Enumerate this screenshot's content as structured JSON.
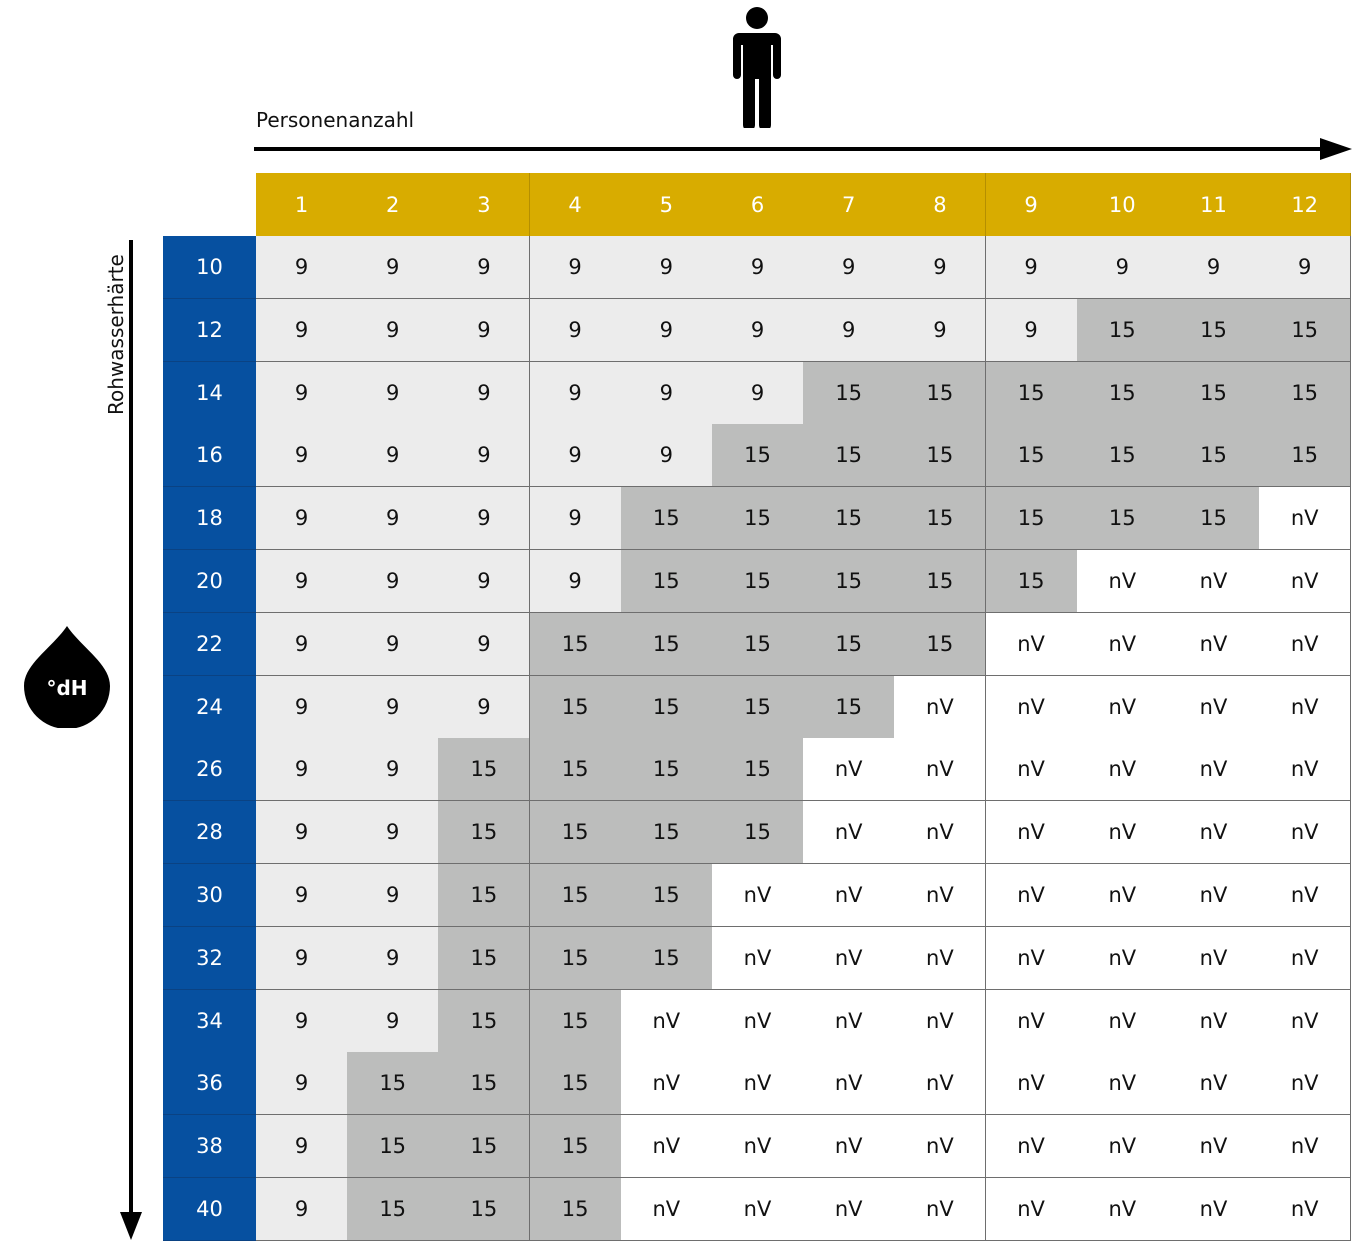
{
  "chart_data": {
    "type": "table",
    "x_axis_label": "Personenanzahl",
    "y_axis_label": "Rohwasserhärte",
    "unit_badge": "°dH",
    "columns": [
      "1",
      "2",
      "3",
      "4",
      "5",
      "6",
      "7",
      "8",
      "9",
      "10",
      "11",
      "12"
    ],
    "rows": [
      "10",
      "12",
      "14",
      "16",
      "18",
      "20",
      "22",
      "24",
      "26",
      "28",
      "30",
      "32",
      "34",
      "36",
      "38",
      "40"
    ],
    "values": [
      [
        "9",
        "9",
        "9",
        "9",
        "9",
        "9",
        "9",
        "9",
        "9",
        "9",
        "9",
        "9"
      ],
      [
        "9",
        "9",
        "9",
        "9",
        "9",
        "9",
        "9",
        "9",
        "9",
        "15",
        "15",
        "15"
      ],
      [
        "9",
        "9",
        "9",
        "9",
        "9",
        "9",
        "15",
        "15",
        "15",
        "15",
        "15",
        "15"
      ],
      [
        "9",
        "9",
        "9",
        "9",
        "9",
        "15",
        "15",
        "15",
        "15",
        "15",
        "15",
        "15"
      ],
      [
        "9",
        "9",
        "9",
        "9",
        "15",
        "15",
        "15",
        "15",
        "15",
        "15",
        "15",
        "nV"
      ],
      [
        "9",
        "9",
        "9",
        "9",
        "15",
        "15",
        "15",
        "15",
        "15",
        "nV",
        "nV",
        "nV"
      ],
      [
        "9",
        "9",
        "9",
        "15",
        "15",
        "15",
        "15",
        "15",
        "nV",
        "nV",
        "nV",
        "nV"
      ],
      [
        "9",
        "9",
        "9",
        "15",
        "15",
        "15",
        "15",
        "nV",
        "nV",
        "nV",
        "nV",
        "nV"
      ],
      [
        "9",
        "9",
        "15",
        "15",
        "15",
        "15",
        "nV",
        "nV",
        "nV",
        "nV",
        "nV",
        "nV"
      ],
      [
        "9",
        "9",
        "15",
        "15",
        "15",
        "15",
        "nV",
        "nV",
        "nV",
        "nV",
        "nV",
        "nV"
      ],
      [
        "9",
        "9",
        "15",
        "15",
        "15",
        "nV",
        "nV",
        "nV",
        "nV",
        "nV",
        "nV",
        "nV"
      ],
      [
        "9",
        "9",
        "15",
        "15",
        "15",
        "nV",
        "nV",
        "nV",
        "nV",
        "nV",
        "nV",
        "nV"
      ],
      [
        "9",
        "9",
        "15",
        "15",
        "nV",
        "nV",
        "nV",
        "nV",
        "nV",
        "nV",
        "nV",
        "nV"
      ],
      [
        "9",
        "15",
        "15",
        "15",
        "nV",
        "nV",
        "nV",
        "nV",
        "nV",
        "nV",
        "nV",
        "nV"
      ],
      [
        "9",
        "15",
        "15",
        "15",
        "nV",
        "nV",
        "nV",
        "nV",
        "nV",
        "nV",
        "nV",
        "nV"
      ],
      [
        "9",
        "15",
        "15",
        "15",
        "nV",
        "nV",
        "nV",
        "nV",
        "nV",
        "nV",
        "nV",
        "nV"
      ]
    ],
    "colors": {
      "header_bg": "#d8ac00",
      "row_header_bg": "#0650a0",
      "value_9_bg": "#ececec",
      "value_15_bg": "#bcbdbc",
      "value_nV_bg": "#ffffff"
    }
  },
  "icons": {
    "person": "person-icon",
    "drop": "water-drop-icon"
  }
}
